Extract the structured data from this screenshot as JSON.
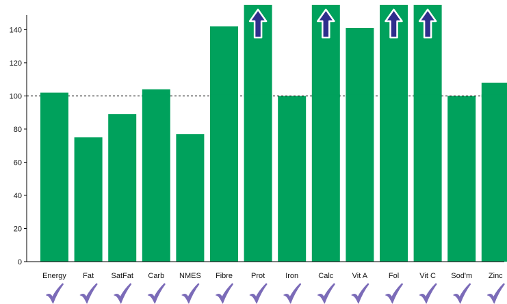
{
  "chart_data": {
    "type": "bar",
    "categories": [
      "Energy",
      "Fat",
      "SatFat",
      "Carb",
      "NMES",
      "Fibre",
      "Prot",
      "Iron",
      "Calc",
      "Vit A",
      "Fol",
      "Vit C",
      "Sod'm",
      "Zinc"
    ],
    "values": [
      102,
      75,
      89,
      104,
      77,
      142,
      155,
      100,
      155,
      141,
      155,
      155,
      100,
      108
    ],
    "exceeds_axis": [
      false,
      false,
      false,
      false,
      false,
      false,
      true,
      false,
      true,
      false,
      true,
      true,
      false,
      false
    ],
    "check_marks": [
      true,
      true,
      true,
      true,
      true,
      true,
      true,
      true,
      true,
      true,
      true,
      true,
      true,
      true
    ],
    "ylim": [
      0,
      155
    ],
    "yticks": [
      0,
      20,
      40,
      60,
      80,
      100,
      120,
      140
    ],
    "reference_line": 100,
    "grid": false,
    "colors": {
      "bar": "#00a15c",
      "arrow_fill": "#2e2e8c",
      "arrow_outline": "#ffffff",
      "check": "#7b6bb8",
      "axis": "#000000",
      "reference_line": "#000000"
    }
  }
}
